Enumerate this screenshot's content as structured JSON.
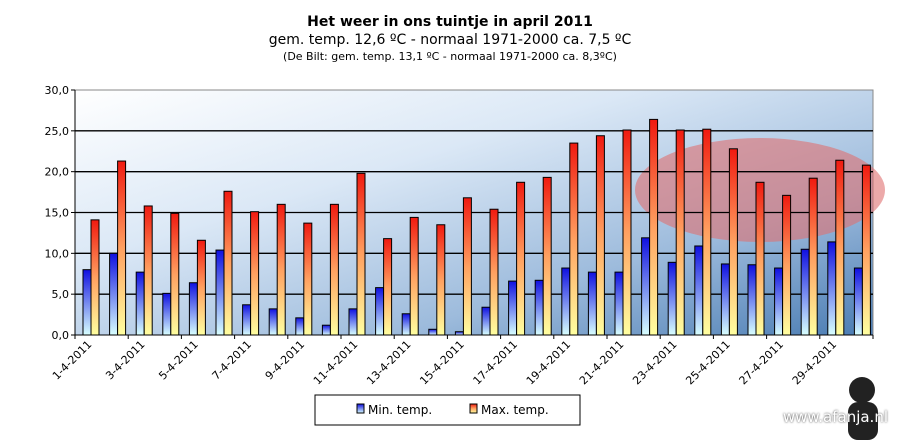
{
  "chart_data": {
    "type": "bar",
    "title": "Het weer in ons tuintje in april 2011",
    "subtitle": "gem.  temp. 12,6 ºC - normaal 1971-2000 ca. 7,5 ºC",
    "subtitle2": "(De Bilt: gem. temp. 13,1 ºC - normaal 1971-2000 ca. 8,3ºC)",
    "xlabel": "",
    "ylabel": "",
    "ylim": [
      0,
      30
    ],
    "yticks": [
      "0,0",
      "5,0",
      "10,0",
      "15,0",
      "20,0",
      "25,0",
      "30,0"
    ],
    "xtick_labels": [
      "1-4-2011",
      "3-4-2011",
      "5-4-2011",
      "7-4-2011",
      "9-4-2011",
      "11-4-2011",
      "13-4-2011",
      "15-4-2011",
      "17-4-2011",
      "19-4-2011",
      "21-4-2011",
      "23-4-2011",
      "25-4-2011",
      "27-4-2011",
      "29-4-2011"
    ],
    "grid": true,
    "legend_placement": "bottom",
    "series": [
      {
        "name": "Min. temp.",
        "color": "#1a2ee8",
        "values": [
          8.0,
          10.0,
          7.7,
          5.1,
          6.4,
          10.4,
          3.7,
          3.2,
          2.1,
          1.2,
          3.2,
          5.8,
          2.6,
          0.7,
          0.4,
          3.4,
          6.6,
          6.7,
          8.2,
          7.7,
          7.7,
          11.9,
          8.9,
          10.9,
          8.7,
          8.6,
          8.2,
          10.5,
          11.4,
          8.2
        ]
      },
      {
        "name": "Max. temp.",
        "color": "#f01a10",
        "values": [
          14.1,
          21.3,
          15.8,
          14.9,
          11.6,
          17.6,
          15.1,
          16.0,
          13.7,
          16.0,
          19.8,
          11.8,
          14.4,
          13.5,
          16.8,
          15.4,
          18.7,
          19.3,
          23.5,
          24.4,
          25.1,
          26.4,
          25.1,
          25.2,
          22.8,
          18.7,
          17.1,
          19.2,
          21.4,
          20.8
        ]
      }
    ]
  },
  "watermark": "www.afanja.nl"
}
